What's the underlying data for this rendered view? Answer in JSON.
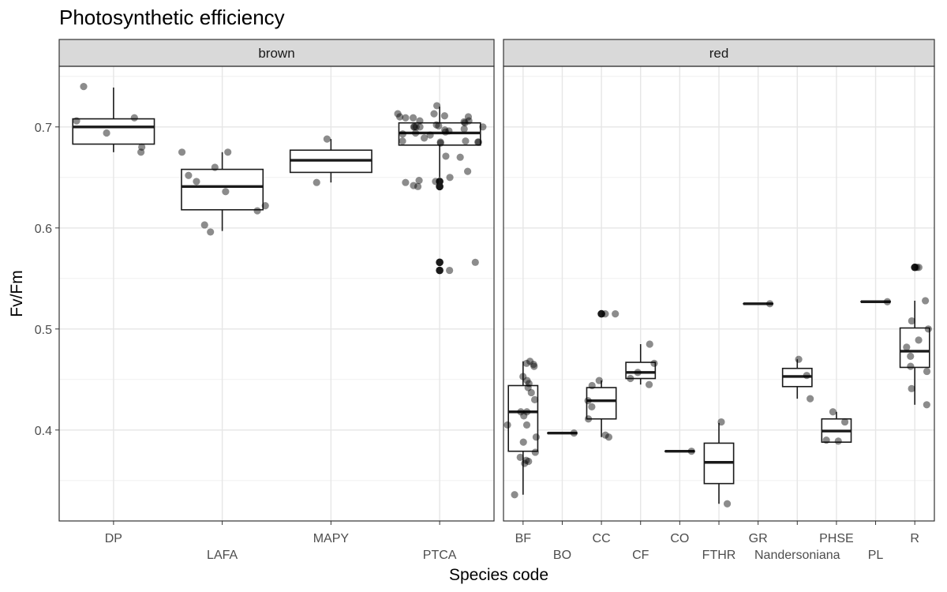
{
  "chart_data": {
    "type": "boxplot",
    "title": "Photosynthetic efficiency",
    "xlabel": "Species code",
    "ylabel": "Fv/Fm",
    "ylim": [
      0.31,
      0.76
    ],
    "y_ticks": [
      0.4,
      0.5,
      0.6,
      0.7
    ],
    "y_tick_labels": [
      "0.4",
      "0.5",
      "0.6",
      "0.7"
    ],
    "grid": true,
    "point_color": "#000000",
    "box_color": "#1a1a1a",
    "strip_fill": "#d9d9d9",
    "panels": [
      {
        "strip": "brown",
        "categories": [
          {
            "label": "DP",
            "q1": 0.683,
            "median": 0.7,
            "q3": 0.708,
            "lower": 0.675,
            "upper": 0.739,
            "outliers": [],
            "points": [
              0.709,
              0.706,
              0.694,
              0.68,
              0.74,
              0.675
            ]
          },
          {
            "label": "LAFA",
            "q1": 0.618,
            "median": 0.641,
            "q3": 0.658,
            "lower": 0.597,
            "upper": 0.675,
            "outliers": [],
            "points": [
              0.675,
              0.596,
              0.603,
              0.636,
              0.652,
              0.675,
              0.617,
              0.646,
              0.66,
              0.622
            ]
          },
          {
            "label": "MAPY",
            "q1": 0.655,
            "median": 0.667,
            "q3": 0.677,
            "lower": 0.645,
            "upper": 0.688,
            "outliers": [],
            "points": [
              0.688,
              0.645
            ]
          },
          {
            "label": "PTCA",
            "q1": 0.682,
            "median": 0.694,
            "q3": 0.704,
            "lower": 0.65,
            "upper": 0.72,
            "outliers": [
              0.646,
              0.641,
              0.566,
              0.558
            ],
            "points": [
              0.7,
              0.685,
              0.65,
              0.645,
              0.642,
              0.656,
              0.704,
              0.713,
              0.709,
              0.706,
              0.71,
              0.7,
              0.692,
              0.696,
              0.684,
              0.689,
              0.7,
              0.711,
              0.709,
              0.698,
              0.702,
              0.71,
              0.647,
              0.646,
              0.641,
              0.566,
              0.558,
              0.685,
              0.686,
              0.721,
              0.671,
              0.67,
              0.713,
              0.7,
              0.706,
              0.705,
              0.693,
              0.697,
              0.685,
              0.7,
              0.686,
              0.694,
              0.701,
              0.695
            ]
          }
        ]
      },
      {
        "strip": "red",
        "categories": [
          {
            "label": "BF",
            "q1": 0.379,
            "median": 0.418,
            "q3": 0.444,
            "lower": 0.336,
            "upper": 0.468,
            "outliers": [],
            "points": [
              0.463,
              0.453,
              0.418,
              0.418,
              0.405,
              0.378,
              0.369,
              0.336,
              0.405,
              0.446,
              0.449,
              0.43,
              0.442,
              0.414,
              0.466,
              0.468,
              0.465,
              0.437,
              0.393,
              0.388,
              0.373,
              0.367,
              0.37
            ]
          },
          {
            "label": "BO",
            "q1": 0.397,
            "median": 0.397,
            "q3": 0.397,
            "lower": 0.397,
            "upper": 0.397,
            "outliers": [],
            "points": [
              0.397
            ]
          },
          {
            "label": "CC",
            "q1": 0.411,
            "median": 0.429,
            "q3": 0.442,
            "lower": 0.393,
            "upper": 0.449,
            "outliers": [
              0.515
            ],
            "points": [
              0.395,
              0.411,
              0.423,
              0.449,
              0.515,
              0.444,
              0.429,
              0.515,
              0.393
            ]
          },
          {
            "label": "CF",
            "q1": 0.451,
            "median": 0.457,
            "q3": 0.467,
            "lower": 0.445,
            "upper": 0.485,
            "outliers": [],
            "points": [
              0.466,
              0.457,
              0.451,
              0.485,
              0.445
            ]
          },
          {
            "label": "CO",
            "q1": 0.379,
            "median": 0.379,
            "q3": 0.379,
            "lower": 0.379,
            "upper": 0.379,
            "outliers": [],
            "points": [
              0.379
            ]
          },
          {
            "label": "FTHR",
            "q1": 0.347,
            "median": 0.368,
            "q3": 0.387,
            "lower": 0.327,
            "upper": 0.407,
            "outliers": [],
            "points": [
              0.327,
              0.408
            ]
          },
          {
            "label": "GR",
            "q1": 0.525,
            "median": 0.525,
            "q3": 0.525,
            "lower": 0.525,
            "upper": 0.525,
            "outliers": [],
            "points": [
              0.525
            ]
          },
          {
            "label": "Nandersoniana",
            "q1": 0.443,
            "median": 0.453,
            "q3": 0.461,
            "lower": 0.431,
            "upper": 0.47,
            "outliers": [],
            "points": [
              0.431,
              0.47,
              0.454
            ]
          },
          {
            "label": "PHSE",
            "q1": 0.388,
            "median": 0.399,
            "q3": 0.411,
            "lower": 0.388,
            "upper": 0.418,
            "outliers": [],
            "points": [
              0.39,
              0.408,
              0.418,
              0.389
            ]
          },
          {
            "label": "PL",
            "q1": 0.527,
            "median": 0.527,
            "q3": 0.527,
            "lower": 0.527,
            "upper": 0.527,
            "outliers": [],
            "points": [
              0.527
            ]
          },
          {
            "label": "R",
            "q1": 0.462,
            "median": 0.478,
            "q3": 0.501,
            "lower": 0.425,
            "upper": 0.528,
            "outliers": [
              0.561
            ],
            "points": [
              0.561,
              0.561,
              0.528,
              0.508,
              0.5,
              0.489,
              0.482,
              0.473,
              0.463,
              0.458,
              0.425,
              0.441
            ]
          }
        ]
      }
    ]
  }
}
